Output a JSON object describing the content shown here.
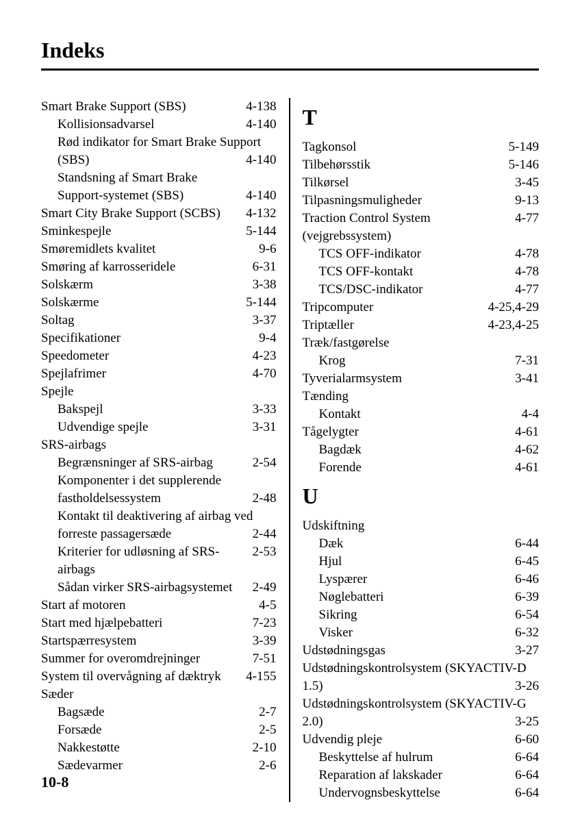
{
  "header": {
    "title": "Indeks"
  },
  "pageNumber": "10-8",
  "left": [
    {
      "label": "Smart Brake Support (SBS)",
      "page": "4-138",
      "sub": false
    },
    {
      "label": "Kollisionsadvarsel",
      "page": "4-140",
      "sub": true
    },
    {
      "label": "Rød indikator for Smart Brake Support (SBS)",
      "page": "4-140",
      "sub": true
    },
    {
      "label": "Standsning af Smart Brake Support-systemet (SBS)",
      "page": "4-140",
      "sub": true
    },
    {
      "label": "Smart City Brake Support (SCBS)",
      "page": "4-132",
      "sub": false
    },
    {
      "label": "Sminkespejle",
      "page": "5-144",
      "sub": false
    },
    {
      "label": "Smøremidlets kvalitet",
      "page": "9-6",
      "sub": false
    },
    {
      "label": "Smøring af karrosseridele",
      "page": "6-31",
      "sub": false
    },
    {
      "label": "Solskærm",
      "page": "3-38",
      "sub": false
    },
    {
      "label": "Solskærme",
      "page": "5-144",
      "sub": false
    },
    {
      "label": "Soltag",
      "page": "3-37",
      "sub": false
    },
    {
      "label": "Specifikationer",
      "page": "9-4",
      "sub": false
    },
    {
      "label": "Speedometer",
      "page": "4-23",
      "sub": false
    },
    {
      "label": "Spejlafrimer",
      "page": "4-70",
      "sub": false
    },
    {
      "label": "Spejle",
      "page": "",
      "sub": false,
      "nopage": true
    },
    {
      "label": "Bakspejl",
      "page": "3-33",
      "sub": true
    },
    {
      "label": "Udvendige spejle",
      "page": "3-31",
      "sub": true
    },
    {
      "label": "SRS-airbags",
      "page": "",
      "sub": false,
      "nopage": true
    },
    {
      "label": "Begrænsninger af SRS-airbag",
      "page": "2-54",
      "sub": true
    },
    {
      "label": "Komponenter i det supplerende fastholdelsessystem",
      "page": "2-48",
      "sub": true
    },
    {
      "label": "Kontakt til deaktivering af airbag ved forreste passagersæde",
      "page": "2-44",
      "sub": true
    },
    {
      "label": "Kriterier for udløsning af SRS-airbags",
      "page": "2-53",
      "sub": true
    },
    {
      "label": "Sådan virker SRS-airbagsystemet",
      "page": "2-49",
      "sub": true
    },
    {
      "label": "Start af motoren",
      "page": "4-5",
      "sub": false
    },
    {
      "label": "Start med hjælpebatteri",
      "page": "7-23",
      "sub": false
    },
    {
      "label": "Startspærresystem",
      "page": "3-39",
      "sub": false
    },
    {
      "label": "Summer for overomdrejninger",
      "page": "7-51",
      "sub": false
    },
    {
      "label": "System til overvågning af dæktryk",
      "page": "4-155",
      "sub": false
    },
    {
      "label": "Sæder",
      "page": "",
      "sub": false,
      "nopage": true
    },
    {
      "label": "Bagsæde",
      "page": "2-7",
      "sub": true
    },
    {
      "label": "Forsæde",
      "page": "2-5",
      "sub": true
    },
    {
      "label": "Nakkestøtte",
      "page": "2-10",
      "sub": true
    },
    {
      "label": "Sædevarmer",
      "page": "2-6",
      "sub": true
    }
  ],
  "rightSections": [
    {
      "letter": "T",
      "entries": [
        {
          "label": "Tagkonsol",
          "page": "5-149",
          "sub": false
        },
        {
          "label": "Tilbehørsstik",
          "page": "5-146",
          "sub": false
        },
        {
          "label": "Tilkørsel",
          "page": "3-45",
          "sub": false
        },
        {
          "label": "Tilpasningsmuligheder",
          "page": "9-13",
          "sub": false
        },
        {
          "label": "Traction Control System (vejgrebssystem)",
          "page": "4-77",
          "sub": false
        },
        {
          "label": "TCS OFF-indikator",
          "page": "4-78",
          "sub": true
        },
        {
          "label": "TCS OFF-kontakt",
          "page": "4-78",
          "sub": true
        },
        {
          "label": "TCS/DSC-indikator",
          "page": "4-77",
          "sub": true
        },
        {
          "label": "Tripcomputer",
          "page": "4-25,4-29",
          "sub": false
        },
        {
          "label": "Triptæller",
          "page": "4-23,4-25",
          "sub": false
        },
        {
          "label": "Træk/fastgørelse",
          "page": "",
          "sub": false,
          "nopage": true
        },
        {
          "label": "Krog",
          "page": "7-31",
          "sub": true
        },
        {
          "label": "Tyverialarmsystem",
          "page": "3-41",
          "sub": false
        },
        {
          "label": "Tænding",
          "page": "",
          "sub": false,
          "nopage": true
        },
        {
          "label": "Kontakt",
          "page": "4-4",
          "sub": true
        },
        {
          "label": "Tågelygter",
          "page": "4-61",
          "sub": false
        },
        {
          "label": "Bagdæk",
          "page": "4-62",
          "sub": true
        },
        {
          "label": "Forende",
          "page": "4-61",
          "sub": true
        }
      ]
    },
    {
      "letter": "U",
      "entries": [
        {
          "label": "Udskiftning",
          "page": "",
          "sub": false,
          "nopage": true
        },
        {
          "label": "Dæk",
          "page": "6-44",
          "sub": true
        },
        {
          "label": "Hjul",
          "page": "6-45",
          "sub": true
        },
        {
          "label": "Lyspærer",
          "page": "6-46",
          "sub": true
        },
        {
          "label": "Nøglebatteri",
          "page": "6-39",
          "sub": true
        },
        {
          "label": "Sikring",
          "page": "6-54",
          "sub": true
        },
        {
          "label": "Visker",
          "page": "6-32",
          "sub": true
        },
        {
          "label": "Udstødningsgas",
          "page": "3-27",
          "sub": false
        },
        {
          "label": "Udstødningskontrolsystem (SKYACTIV-D 1.5)",
          "page": "3-26",
          "sub": false
        },
        {
          "label": "Udstødningskontrolsystem (SKYACTIV-G 2.0)",
          "page": "3-25",
          "sub": false
        },
        {
          "label": "Udvendig pleje",
          "page": "6-60",
          "sub": false
        },
        {
          "label": "Beskyttelse af hulrum",
          "page": "6-64",
          "sub": true
        },
        {
          "label": "Reparation af lakskader",
          "page": "6-64",
          "sub": true
        },
        {
          "label": "Undervognsbeskyttelse",
          "page": "6-64",
          "sub": true
        }
      ]
    }
  ]
}
